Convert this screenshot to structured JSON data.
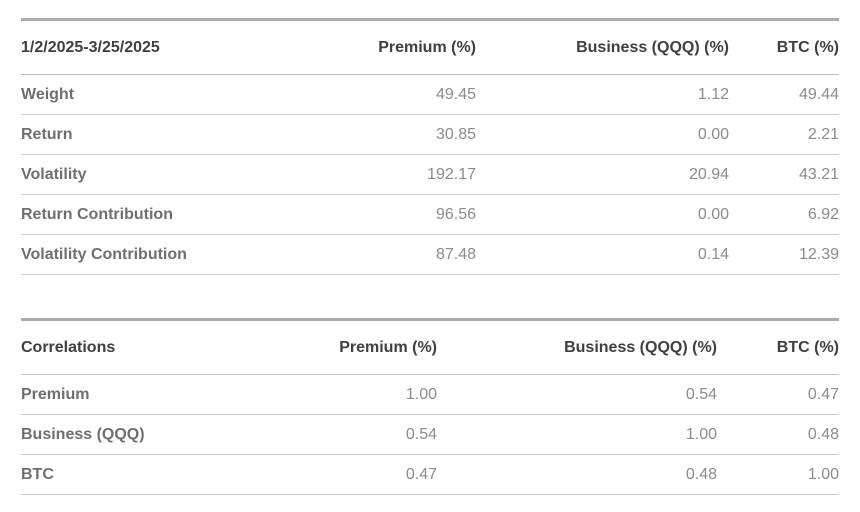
{
  "colors": {
    "header_text": "#3f3f3f",
    "label_text": "#6f6f6f",
    "number_text": "#8b8b8b",
    "table_top_border": "#ababab",
    "row_divider": "#cdcdcd",
    "background": "#ffffff"
  },
  "chart_data": [
    {
      "type": "table",
      "title": "1/2/2025-3/25/2025",
      "columns": [
        "1/2/2025-3/25/2025",
        "Premium (%)",
        "Business (QQQ) (%)",
        "BTC (%)"
      ],
      "rows": [
        [
          "Weight",
          "49.45",
          "1.12",
          "49.44"
        ],
        [
          "Return",
          "30.85",
          "0.00",
          "2.21"
        ],
        [
          "Volatility",
          "192.17",
          "20.94",
          "43.21"
        ],
        [
          "Return Contribution",
          "96.56",
          "0.00",
          "6.92"
        ],
        [
          "Volatility Contribution",
          "87.48",
          "0.14",
          "12.39"
        ]
      ]
    },
    {
      "type": "table",
      "title": "Correlations",
      "columns": [
        "Correlations",
        "Premium (%)",
        "Business (QQQ) (%)",
        "BTC (%)"
      ],
      "rows": [
        [
          "Premium",
          "1.00",
          "0.54",
          "0.47"
        ],
        [
          "Business (QQQ)",
          "0.54",
          "1.00",
          "0.48"
        ],
        [
          "BTC",
          "0.47",
          "0.48",
          "1.00"
        ]
      ]
    }
  ]
}
